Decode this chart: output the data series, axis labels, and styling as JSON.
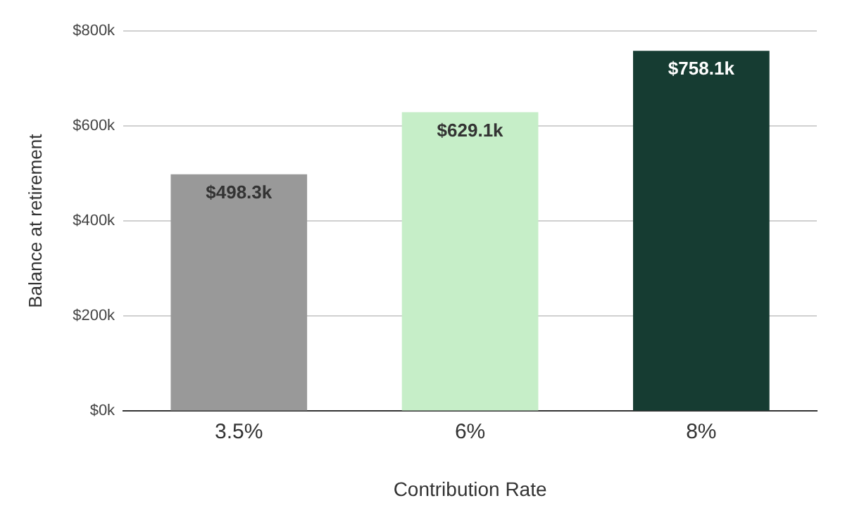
{
  "chart_data": {
    "type": "bar",
    "xlabel": "Contribution Rate",
    "ylabel": "Balance at retirement",
    "categories": [
      "3.5%",
      "6%",
      "8%"
    ],
    "values": [
      498.3,
      629.1,
      758.1
    ],
    "colors": [
      "#999999",
      "#c6eec8",
      "#163c32"
    ],
    "value_labels": [
      "$498.3k",
      "$629.1k",
      "$758.1k"
    ],
    "ylim": [
      0,
      800
    ],
    "yticks": [
      {
        "value": 0,
        "label": "$0k"
      },
      {
        "value": 200,
        "label": "$200k"
      },
      {
        "value": 400,
        "label": "$400k"
      },
      {
        "value": 600,
        "label": "$600k"
      },
      {
        "value": 800,
        "label": "$800k"
      }
    ],
    "grid": "y",
    "legend": false
  }
}
